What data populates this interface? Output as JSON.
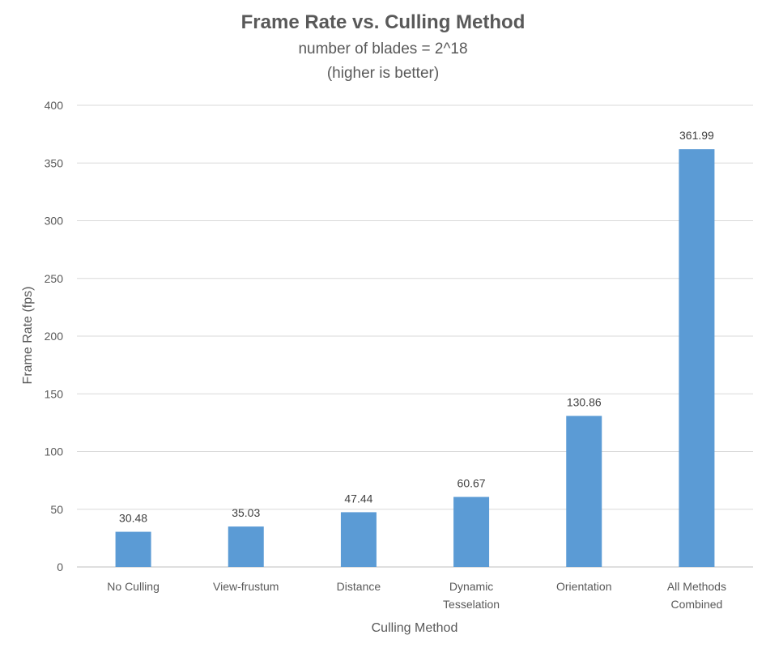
{
  "chart_data": {
    "type": "bar",
    "title": "Frame Rate vs. Culling Method",
    "subtitle_lines": [
      "number of blades = 2^18",
      "(higher is better)"
    ],
    "xlabel": "Culling Method",
    "ylabel": "Frame Rate (fps)",
    "categories": [
      [
        "No Culling"
      ],
      [
        "View-frustum"
      ],
      [
        "Distance"
      ],
      [
        "Dynamic",
        "Tesselation"
      ],
      [
        "Orientation"
      ],
      [
        "All Methods",
        "Combined"
      ]
    ],
    "values": [
      30.48,
      35.03,
      47.44,
      60.67,
      130.86,
      361.99
    ],
    "value_labels": [
      "30.48",
      "35.03",
      "47.44",
      "60.67",
      "130.86",
      "361.99"
    ],
    "ylim": [
      0,
      400
    ],
    "yticks": [
      0,
      50,
      100,
      150,
      200,
      250,
      300,
      350,
      400
    ],
    "grid": true,
    "legend": "none",
    "bar_color": "#5b9bd5",
    "grid_color": "#d9d9d9"
  }
}
